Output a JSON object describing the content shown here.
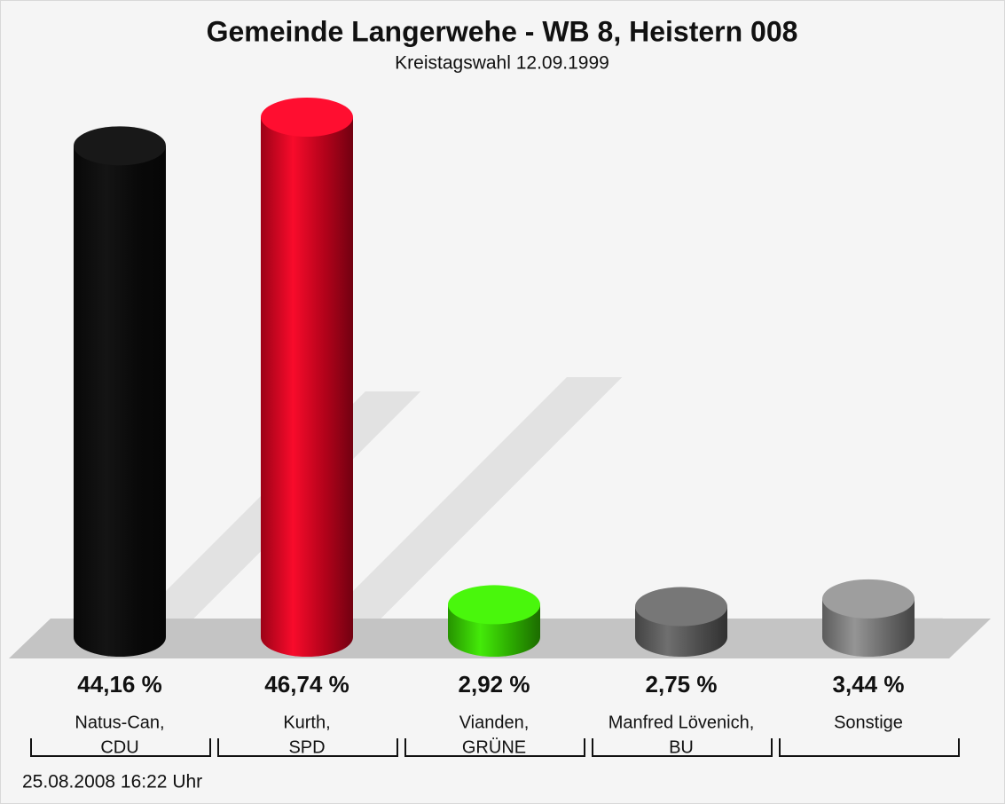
{
  "chart_data": {
    "type": "bar3d",
    "title": "Gemeinde Langerwehe - WB 8, Heistern 008",
    "subtitle": "Kreistagswahl 12.09.1999",
    "categories": [
      [
        "Natus-Can,",
        "CDU"
      ],
      [
        "Kurth,",
        "SPD"
      ],
      [
        "Vianden,",
        "GRÜNE"
      ],
      [
        "Manfred Lövenich,",
        "BU"
      ],
      [
        "Sonstige"
      ]
    ],
    "values": [
      44.16,
      46.74,
      2.92,
      2.75,
      3.44
    ],
    "value_labels": [
      "44,16 %",
      "46,74 %",
      "2,92 %",
      "2,75 %",
      "3,44 %"
    ],
    "colors": [
      "#0a0a0a",
      "#d0021e",
      "#33c400",
      "#595959",
      "#7a7a7a"
    ],
    "footer": "25.08.2008 16:22 Uhr"
  }
}
